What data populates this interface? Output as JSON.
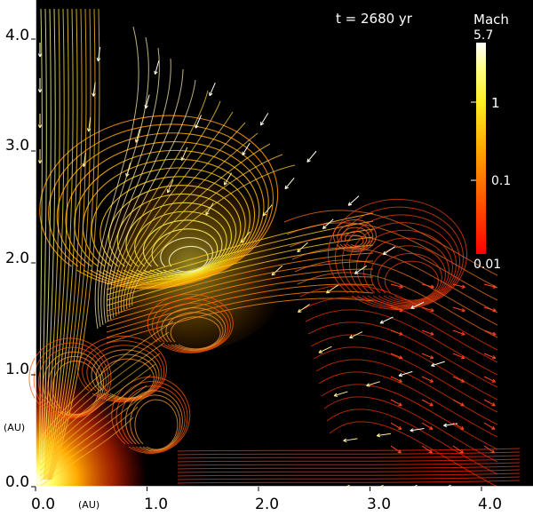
{
  "annotation": {
    "time_label": "t = 2680 yr"
  },
  "colorbar": {
    "title": "Mach",
    "max_label": "5.7",
    "ticks": [
      {
        "label": "1",
        "value": 1
      },
      {
        "label": "0.1",
        "value": 0.1
      }
    ],
    "min_label": "0.01",
    "min": 0.01,
    "max": 5.7,
    "scale": "log",
    "colors": [
      "#ff0000",
      "#ff4400",
      "#ff8800",
      "#ffcc00",
      "#ffff33",
      "#ffffaa",
      "#ffffff"
    ]
  },
  "axes": {
    "x": {
      "unit": "(AU)",
      "ticks": [
        {
          "label": "0.0",
          "value": 0
        },
        {
          "label": "1.0",
          "value": 1
        },
        {
          "label": "2.0",
          "value": 2
        },
        {
          "label": "3.0",
          "value": 3
        },
        {
          "label": "4.0",
          "value": 4
        }
      ]
    },
    "y": {
      "unit": "(AU)",
      "ticks": [
        {
          "label": "0.0",
          "value": 0
        },
        {
          "label": "1.0",
          "value": 1
        },
        {
          "label": "2.0",
          "value": 2
        },
        {
          "label": "3.0",
          "value": 3
        },
        {
          "label": "4.0",
          "value": 4
        }
      ]
    }
  },
  "background_color": "#000000"
}
